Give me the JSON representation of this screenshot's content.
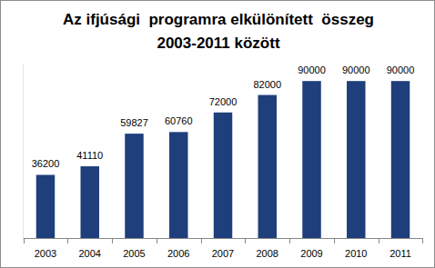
{
  "chart_data": {
    "type": "bar",
    "title": "Az ifjúsági  programra elkülönített  összeg",
    "subtitle": "2003-2011 között",
    "categories": [
      "2003",
      "2004",
      "2005",
      "2006",
      "2007",
      "2008",
      "2009",
      "2010",
      "2011"
    ],
    "values": [
      36200,
      41110,
      59827,
      60760,
      72000,
      82000,
      90000,
      90000,
      90000
    ],
    "color": "#1f3e7c",
    "ylim": [
      0,
      100000
    ],
    "grid": false,
    "data_labels": true,
    "tick_labels": "x"
  }
}
